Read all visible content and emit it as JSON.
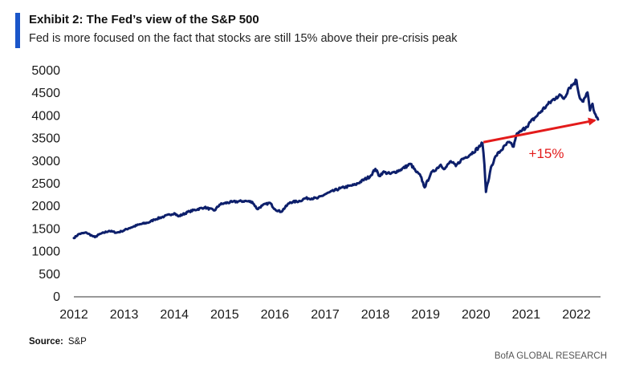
{
  "header": {
    "title": "Exhibit 2: The Fed’s view of the S&P 500",
    "subtitle": "Fed is more focused on the fact that stocks are still 15% above their pre-crisis peak"
  },
  "colors": {
    "accent": "#1a56c9",
    "series": "#0d1f6b",
    "annotation": "#e31b1b",
    "axis": "#333333"
  },
  "chart_data": {
    "type": "line",
    "title": "The Fed’s view of the S&P 500",
    "xlabel": "",
    "ylabel": "",
    "xlim": [
      2012,
      2022.45
    ],
    "ylim": [
      0,
      5000
    ],
    "grid": false,
    "xticks": [
      2012,
      2013,
      2014,
      2015,
      2016,
      2017,
      2018,
      2019,
      2020,
      2021,
      2022
    ],
    "yticks": [
      0,
      500,
      1000,
      1500,
      2000,
      2500,
      3000,
      3500,
      4000,
      4500,
      5000
    ],
    "series": [
      {
        "name": "S&P 500",
        "x": [
          2012.0,
          2012.1,
          2012.25,
          2012.38,
          2012.42,
          2012.5,
          2012.7,
          2012.85,
          2012.95,
          2013.1,
          2013.3,
          2013.5,
          2013.6,
          2013.8,
          2014.0,
          2014.08,
          2014.3,
          2014.6,
          2014.8,
          2014.9,
          2015.0,
          2015.15,
          2015.4,
          2015.55,
          2015.65,
          2015.75,
          2015.9,
          2016.0,
          2016.12,
          2016.3,
          2016.5,
          2016.6,
          2016.85,
          2017.0,
          2017.3,
          2017.6,
          2017.9,
          2018.0,
          2018.08,
          2018.15,
          2018.3,
          2018.5,
          2018.7,
          2018.8,
          2018.9,
          2018.98,
          2019.1,
          2019.3,
          2019.38,
          2019.5,
          2019.6,
          2019.7,
          2019.9,
          2020.05,
          2020.13,
          2020.17,
          2020.2,
          2020.23,
          2020.26,
          2020.3,
          2020.4,
          2020.5,
          2020.65,
          2020.75,
          2020.8,
          2020.9,
          2021.0,
          2021.2,
          2021.4,
          2021.6,
          2021.7,
          2021.75,
          2021.85,
          2021.95,
          2022.0,
          2022.05,
          2022.12,
          2022.18,
          2022.22,
          2022.27,
          2022.32,
          2022.36,
          2022.4,
          2022.43
        ],
        "values": [
          1280,
          1370,
          1400,
          1320,
          1300,
          1360,
          1440,
          1400,
          1430,
          1500,
          1580,
          1630,
          1690,
          1760,
          1830,
          1760,
          1870,
          1960,
          1890,
          2020,
          2050,
          2080,
          2100,
          2080,
          1920,
          2000,
          2060,
          1920,
          1860,
          2070,
          2100,
          2160,
          2160,
          2250,
          2380,
          2460,
          2650,
          2810,
          2650,
          2740,
          2700,
          2790,
          2920,
          2760,
          2650,
          2400,
          2700,
          2900,
          2810,
          2980,
          2870,
          3000,
          3140,
          3280,
          3380,
          2900,
          2300,
          2480,
          2600,
          2850,
          3100,
          3220,
          3400,
          3300,
          3550,
          3640,
          3740,
          3970,
          4200,
          4400,
          4430,
          4360,
          4600,
          4700,
          4770,
          4450,
          4300,
          4400,
          4500,
          4100,
          4250,
          4050,
          3950,
          3900
        ]
      }
    ],
    "annotations": [
      {
        "type": "arrow",
        "x0": 2020.15,
        "y0": 3400,
        "x1": 2022.43,
        "y1": 3900,
        "label": "+15%",
        "label_x": 2021.05,
        "label_y": 3050
      }
    ]
  },
  "footer": {
    "source_label": "Source:",
    "source_value": "S&P",
    "brand": "BofA GLOBAL RESEARCH"
  }
}
